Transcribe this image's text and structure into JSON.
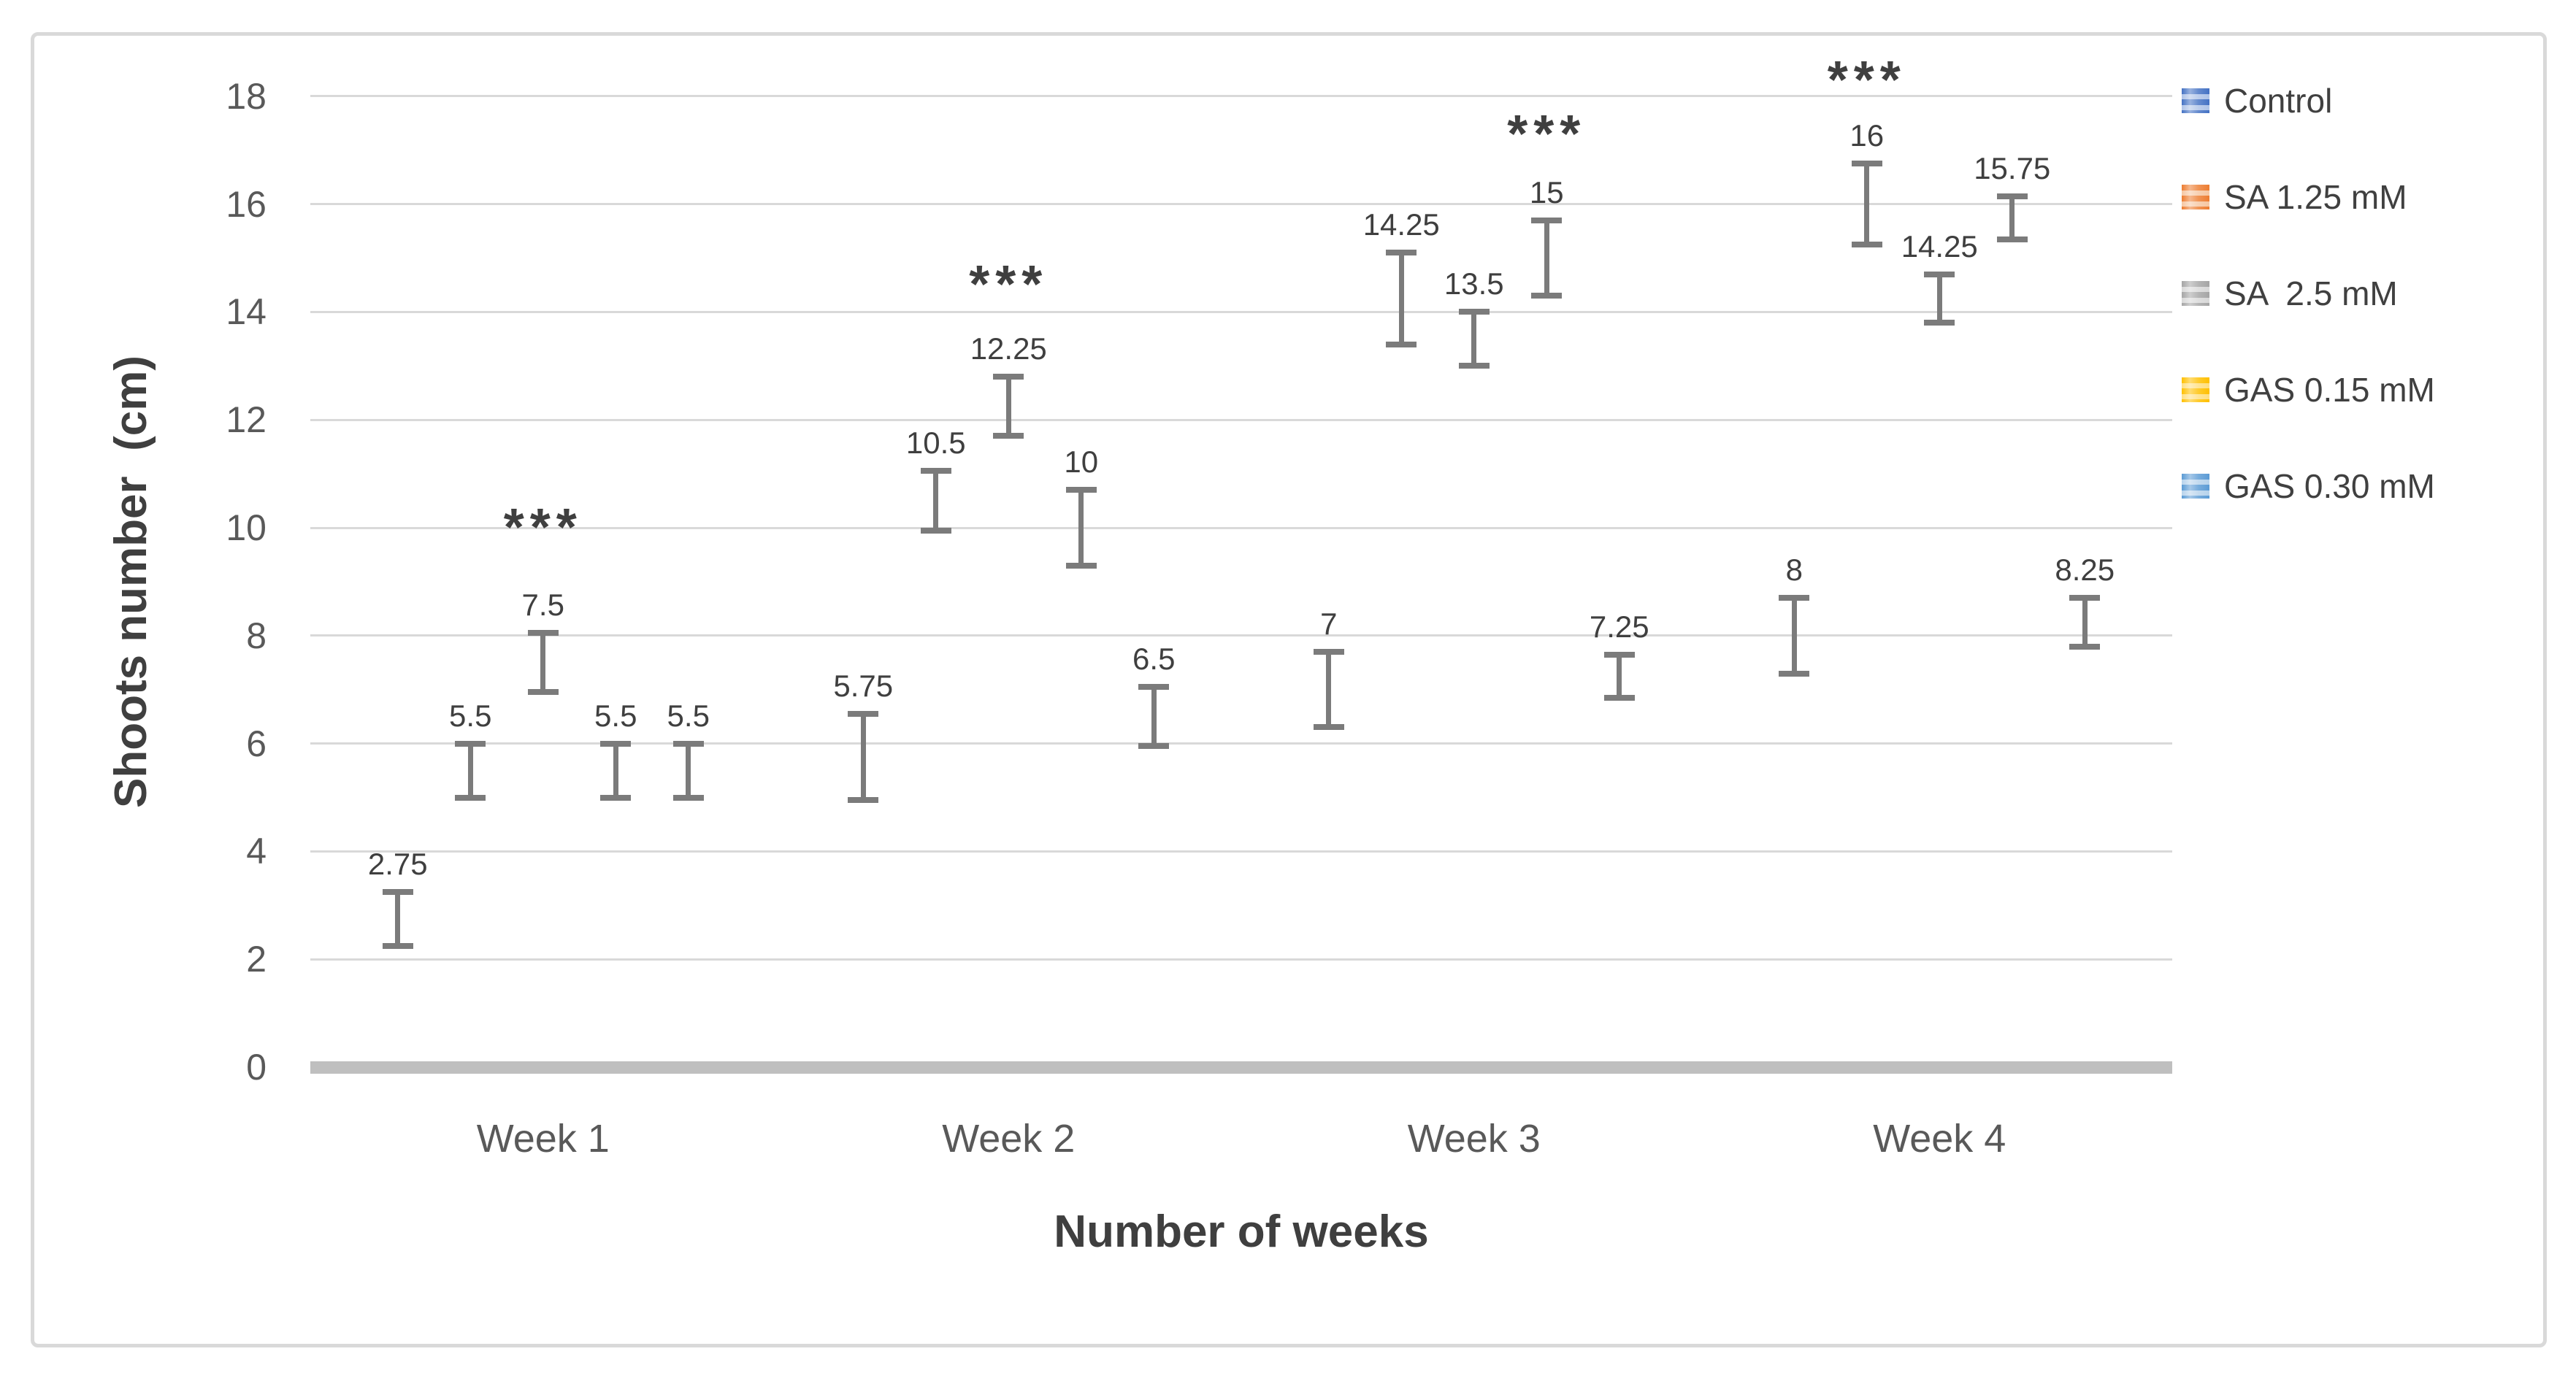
{
  "chart_data": {
    "type": "bar",
    "title": "",
    "xlabel": "Number of weeks",
    "ylabel": "Shoots number  (cm)",
    "categories": [
      "Week 1",
      "Week 2",
      "Week 3",
      "Week 4"
    ],
    "series": [
      {
        "name": "Control",
        "color": "#4472C4",
        "color_light": "#AEC3E8",
        "values": [
          2.75,
          5.75,
          7,
          8
        ],
        "errors": [
          0.5,
          0.8,
          0.7,
          0.7
        ],
        "labels": [
          "2.75",
          "5.75",
          "7",
          "8"
        ]
      },
      {
        "name": "SA 1.25 mM",
        "color": "#ED7D31",
        "color_light": "#F6C7A2",
        "values": [
          5.5,
          10.5,
          14.25,
          16
        ],
        "errors": [
          0.5,
          0.55,
          0.85,
          0.75
        ],
        "labels": [
          "5.5",
          "10.5",
          "14.25",
          "16"
        ]
      },
      {
        "name": "SA  2.5 mM",
        "color": "#A5A5A5",
        "color_light": "#D8D8D8",
        "values": [
          7.5,
          12.25,
          13.5,
          14.25
        ],
        "errors": [
          0.55,
          0.55,
          0.5,
          0.45
        ],
        "labels": [
          "7.5",
          "12.25",
          "13.5",
          "14.25"
        ]
      },
      {
        "name": "GAS 0.15 mM",
        "color": "#FFC000",
        "color_light": "#FFDF80",
        "values": [
          5.5,
          10,
          15,
          15.75
        ],
        "errors": [
          0.5,
          0.7,
          0.7,
          0.4
        ],
        "labels": [
          "5.5",
          "10",
          "15",
          "15.75"
        ]
      },
      {
        "name": "GAS 0.30 mM",
        "color": "#5B9BD5",
        "color_light": "#B7D3EC",
        "values": [
          5.5,
          6.5,
          7.25,
          8.25
        ],
        "errors": [
          0.5,
          0.55,
          0.4,
          0.45
        ],
        "labels": [
          "5.5",
          "6.5",
          "7.25",
          "8.25"
        ]
      }
    ],
    "annotations": [
      {
        "text": "***",
        "category_index": 0,
        "series_index": 2,
        "y": 10.0
      },
      {
        "text": "***",
        "category_index": 1,
        "series_index": 2,
        "y": 14.5
      },
      {
        "text": "***",
        "category_index": 2,
        "series_index": 3,
        "y": 17.3
      },
      {
        "text": "***",
        "category_index": 3,
        "series_index": 1,
        "y": 18.3
      }
    ],
    "ylim": [
      0,
      18
    ],
    "ytick_step": 2,
    "yticks": [
      "0",
      "2",
      "4",
      "6",
      "8",
      "10",
      "12",
      "14",
      "16",
      "18"
    ],
    "grid": true,
    "legend_position": "right",
    "error_bar_color": "#7B7B7B",
    "colors": {
      "gridline": "#D9D9D9",
      "baseline": "#BFBFBF",
      "frame_border": "#D9D9D9",
      "tick_text": "#595959",
      "data_label_text": "#3F3F3F",
      "axis_title_text": "#3F3F3F",
      "legend_text": "#404040"
    }
  }
}
